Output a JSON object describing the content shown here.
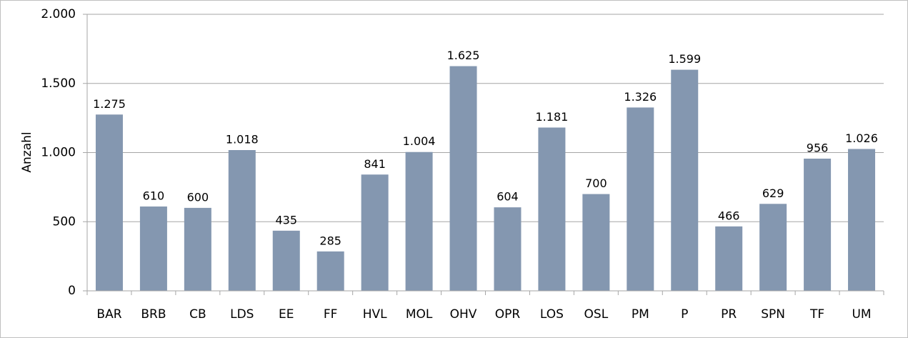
{
  "chart_data": {
    "type": "bar",
    "y_label": "Anzahl",
    "categories": [
      "BAR",
      "BRB",
      "CB",
      "LDS",
      "EE",
      "FF",
      "HVL",
      "MOL",
      "OHV",
      "OPR",
      "LOS",
      "OSL",
      "PM",
      "P",
      "PR",
      "SPN",
      "TF",
      "UM"
    ],
    "values": [
      1275,
      610,
      600,
      1018,
      435,
      285,
      841,
      1004,
      1625,
      604,
      1181,
      700,
      1326,
      1599,
      466,
      629,
      956,
      1026
    ],
    "value_labels": [
      "1.275",
      "610",
      "600",
      "1.018",
      "435",
      "285",
      "841",
      "1.004",
      "1.625",
      "604",
      "1.181",
      "700",
      "1.326",
      "1.599",
      "466",
      "629",
      "956",
      "1.026"
    ],
    "color": "#8497b0",
    "ylim": [
      0,
      2000
    ],
    "yticks": [
      0,
      500,
      {
        "value": 1000,
        "label": "1.000"
      },
      {
        "value": 1500,
        "label": "1.500"
      },
      {
        "value": 2000,
        "label": "2.000"
      }
    ],
    "grid": true
  }
}
